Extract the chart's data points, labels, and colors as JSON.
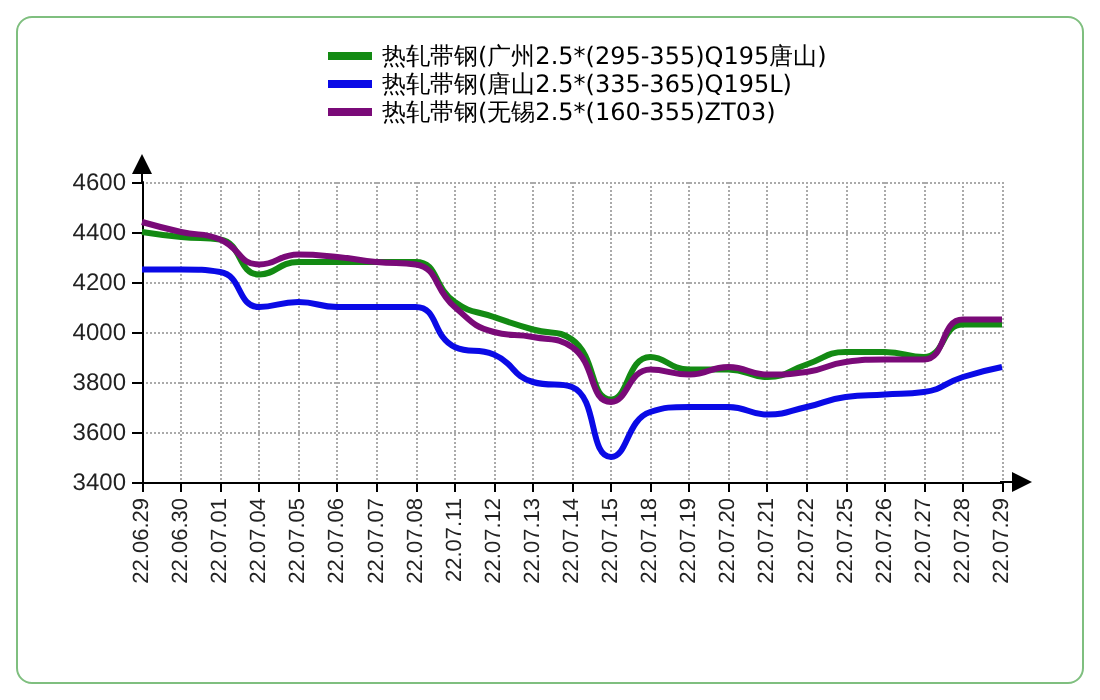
{
  "chart_data": {
    "type": "line",
    "categories": [
      "22.06.29",
      "22.06.30",
      "22.07.01",
      "22.07.04",
      "22.07.05",
      "22.07.06",
      "22.07.07",
      "22.07.08",
      "22.07.11",
      "22.07.12",
      "22.07.13",
      "22.07.14",
      "22.07.15",
      "22.07.18",
      "22.07.19",
      "22.07.20",
      "22.07.21",
      "22.07.22",
      "22.07.25",
      "22.07.26",
      "22.07.27",
      "22.07.28",
      "22.07.29"
    ],
    "series": [
      {
        "name": "热轧带钢(广州2.5*(295-355)Q195唐山)",
        "color": "#138a13",
        "values": [
          4400,
          4380,
          4370,
          4230,
          4280,
          4280,
          4280,
          4280,
          4120,
          4060,
          4010,
          3970,
          3730,
          3900,
          3850,
          3850,
          3820,
          3870,
          3920,
          3920,
          3900,
          4030,
          4030
        ]
      },
      {
        "name": "热轧带钢(唐山2.5*(335-365)Q195L)",
        "color": "#0a0ae6",
        "values": [
          4250,
          4250,
          4240,
          4100,
          4120,
          4100,
          4100,
          4100,
          3940,
          3910,
          3800,
          3780,
          3500,
          3680,
          3700,
          3700,
          3670,
          3700,
          3740,
          3750,
          3760,
          3820,
          3860
        ]
      },
      {
        "name": "热轧带钢(无锡2.5*(160-355)ZT03)",
        "color": "#7a0a78",
        "values": [
          4440,
          4400,
          4370,
          4270,
          4310,
          4300,
          4280,
          4270,
          4100,
          4000,
          3980,
          3940,
          3720,
          3850,
          3830,
          3860,
          3830,
          3840,
          3880,
          3890,
          3890,
          4050,
          4050
        ]
      }
    ],
    "ylim": [
      3400,
      4600
    ],
    "yticks": [
      3400,
      3600,
      3800,
      4000,
      4200,
      4400,
      4600
    ],
    "grid": true,
    "legend": "top",
    "marker": "none",
    "line_style": "solid"
  }
}
